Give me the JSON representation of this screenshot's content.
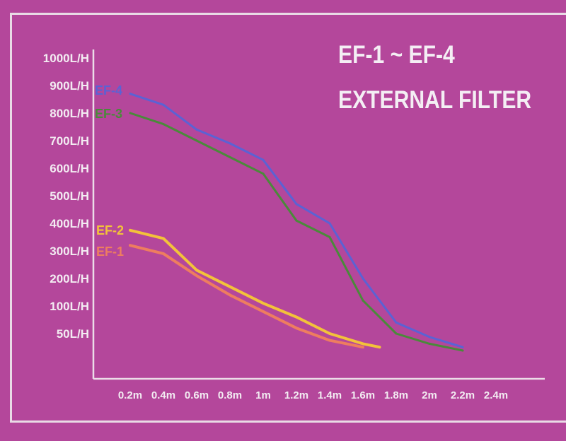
{
  "chart_data": {
    "type": "line",
    "title": "EF-1 ~ EF-4",
    "subtitle": "EXTERNAL FILTER",
    "xlabel": "",
    "ylabel": "",
    "x_ticks": [
      "0.2m",
      "0.4m",
      "0.6m",
      "0.8m",
      "1m",
      "1.2m",
      "1.4m",
      "1.6m",
      "1.8m",
      "2m",
      "2.2m",
      "2.4m"
    ],
    "y_ticks": [
      "1000L/H",
      "900L/H",
      "800L/H",
      "700L/H",
      "600L/H",
      "500L/H",
      "400L/H",
      "300L/H",
      "200L/H",
      "100L/H",
      "50L/H"
    ],
    "grid": false,
    "legend": "inline labels at the start of each line",
    "series": [
      {
        "name": "EF-4",
        "color": "#5b62d4",
        "x": [
          0.2,
          0.4,
          0.6,
          0.8,
          1.0,
          1.2,
          1.4,
          1.6,
          1.8,
          2.0,
          2.2
        ],
        "y": [
          870,
          830,
          740,
          690,
          630,
          470,
          400,
          200,
          70,
          40,
          10
        ]
      },
      {
        "name": "EF-3",
        "color": "#4a8a3a",
        "x": [
          0.2,
          0.4,
          0.6,
          0.8,
          1.0,
          1.2,
          1.4,
          1.6,
          1.8,
          2.0,
          2.2
        ],
        "y": [
          800,
          760,
          700,
          640,
          580,
          410,
          350,
          120,
          50,
          20,
          0
        ]
      },
      {
        "name": "EF-2",
        "color": "#f3c23a",
        "x": [
          0.2,
          0.4,
          0.6,
          0.8,
          1.0,
          1.2,
          1.4,
          1.6,
          1.7
        ],
        "y": [
          375,
          345,
          230,
          170,
          110,
          80,
          50,
          20,
          10
        ]
      },
      {
        "name": "EF-1",
        "color": "#ee7d5f",
        "x": [
          0.2,
          0.4,
          0.6,
          0.8,
          1.0,
          1.2,
          1.4,
          1.6
        ],
        "y": [
          320,
          290,
          210,
          140,
          90,
          60,
          30,
          10
        ]
      }
    ]
  }
}
